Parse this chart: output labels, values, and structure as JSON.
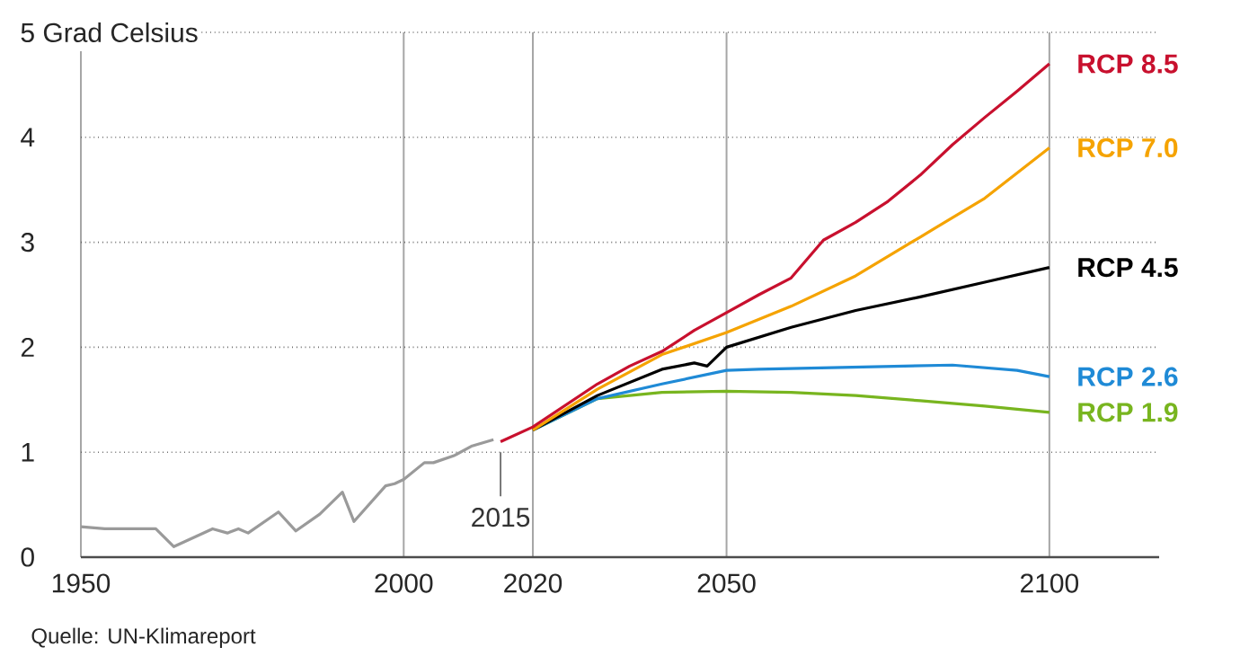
{
  "chart_data": {
    "type": "line",
    "xlim": [
      1950,
      2117
    ],
    "ylim": [
      0,
      5
    ],
    "xticks": [
      1950,
      2000,
      2020,
      2050,
      2100
    ],
    "yticks": [
      0,
      1,
      2,
      3,
      4,
      {
        "value": 5,
        "label": "5 Grad Celsius"
      }
    ],
    "grid": true,
    "series": [
      {
        "color": "#9a9a9a",
        "x": [
          1950,
          1953.7,
          1961.6,
          1964.4,
          1970.4,
          1972.7,
          1974.4,
          1975.9,
          1980.6,
          1983.3,
          1987,
          1990.5,
          1992.3,
          1997.2,
          1998.6,
          2000,
          2003.2,
          2004.6,
          2007.9,
          2010.6,
          2013.9
        ],
        "values": [
          0.29,
          0.27,
          0.27,
          0.1,
          0.27,
          0.23,
          0.27,
          0.23,
          0.43,
          0.25,
          0.41,
          0.62,
          0.34,
          0.68,
          0.7,
          0.74,
          0.9,
          0.9,
          0.97,
          1.06,
          1.12
        ]
      },
      {
        "name": "RCP 1.9",
        "color": "#78b51f",
        "x": [
          2020,
          2030,
          2040,
          2050,
          2060,
          2070,
          2080,
          2090,
          2100
        ],
        "values": [
          1.21,
          1.51,
          1.57,
          1.58,
          1.57,
          1.54,
          1.49,
          1.44,
          1.38
        ]
      },
      {
        "name": "RCP 2.6",
        "color": "#1f8ad6",
        "x": [
          2020,
          2030,
          2040,
          2050,
          2055,
          2070,
          2085,
          2095,
          2100
        ],
        "values": [
          1.21,
          1.51,
          1.65,
          1.78,
          1.79,
          1.81,
          1.83,
          1.78,
          1.72
        ]
      },
      {
        "name": "RCP 4.5",
        "color": "#000000",
        "x": [
          2020,
          2030,
          2040,
          2045,
          2047,
          2050,
          2060,
          2070,
          2080,
          2090,
          2100
        ],
        "values": [
          1.21,
          1.54,
          1.79,
          1.85,
          1.82,
          2.0,
          2.19,
          2.35,
          2.48,
          2.62,
          2.76
        ]
      },
      {
        "name": "RCP 7.0",
        "color": "#f5a300",
        "x": [
          2020,
          2030,
          2040,
          2050,
          2060,
          2070,
          2080,
          2090,
          2100
        ],
        "values": [
          1.21,
          1.6,
          1.93,
          2.14,
          2.39,
          2.68,
          3.05,
          3.42,
          3.9
        ]
      },
      {
        "name": "RCP 8.5",
        "color": "#c8102e",
        "x": [
          2015,
          2020,
          2030,
          2035,
          2040,
          2045,
          2050,
          2055,
          2060,
          2065,
          2070,
          2075,
          2080,
          2085,
          2090,
          2095,
          2100
        ],
        "values": [
          1.1,
          1.24,
          1.65,
          1.82,
          1.96,
          2.16,
          2.33,
          2.5,
          2.66,
          3.02,
          3.19,
          3.39,
          3.64,
          3.93,
          4.19,
          4.44,
          4.7
        ]
      }
    ],
    "ref_lines": [
      {
        "axis": "x",
        "value": 2015,
        "label": "2015"
      }
    ],
    "annotations": [
      "Quelle: UN-Klimareport"
    ]
  }
}
